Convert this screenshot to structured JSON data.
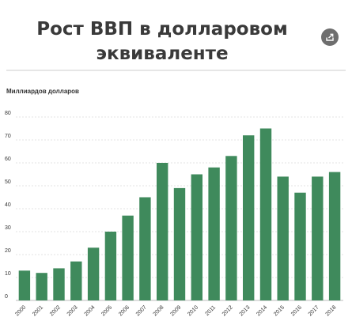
{
  "header": {
    "title_line1": "Рост ВВП в долларовом",
    "title_line2": "эквиваленте",
    "share_icon": "share-icon"
  },
  "chart_data": {
    "type": "bar",
    "title": "Рост ВВП в долларовом эквиваленте",
    "ylabel": "Миллиардов долларов",
    "xlabel": "",
    "ylim": [
      0,
      80
    ],
    "yticks": [
      0,
      10,
      20,
      30,
      40,
      50,
      60,
      70,
      80
    ],
    "grid": true,
    "bar_color": "#3f8a5c",
    "categories": [
      "2000",
      "2001",
      "2002",
      "2003",
      "2004",
      "2005",
      "2006",
      "2007",
      "2008",
      "2009",
      "2010",
      "2011",
      "2012",
      "2013",
      "2014",
      "2015",
      "2016",
      "2017",
      "2018"
    ],
    "values": [
      13,
      12,
      14,
      17,
      23,
      30,
      37,
      45,
      60,
      49,
      55,
      58,
      63,
      72,
      75,
      54,
      47,
      54,
      56
    ]
  }
}
